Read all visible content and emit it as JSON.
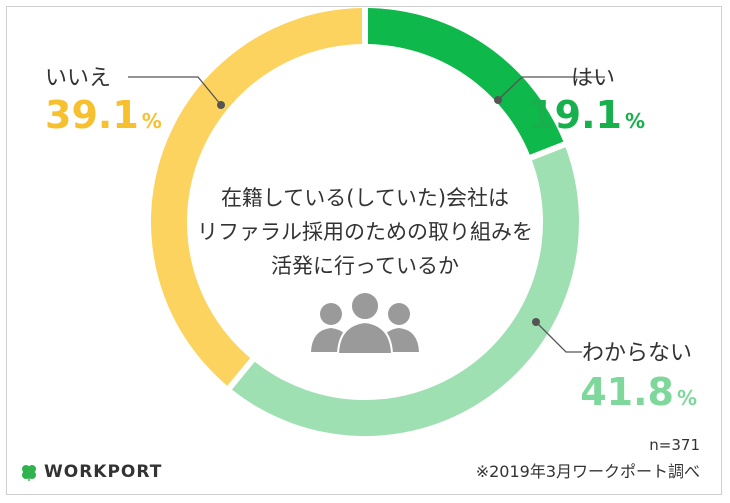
{
  "chart_data": {
    "type": "pie",
    "donut": true,
    "start": "top, clockwise",
    "slices": [
      {
        "label": "はい",
        "value": 19.1,
        "display": "19.1",
        "color": "#0fb84a",
        "label_side": "right-top"
      },
      {
        "label": "わからない",
        "value": 41.8,
        "display": "41.8",
        "color": "#9fe0b3",
        "label_side": "right-bottom"
      },
      {
        "label": "いいえ",
        "value": 39.1,
        "display": "39.1",
        "color": "#fcd35e",
        "label_side": "left-top"
      }
    ],
    "percent_sign": "%",
    "center_lines": [
      "在籍している(していた)会社は",
      "リファラル採用のための取り組みを",
      "活発に行っているか"
    ],
    "center_icon": "people-group-icon"
  },
  "footer": {
    "sample": "n=371",
    "source": "※2019年3月ワークポート調べ"
  },
  "logo": {
    "icon": "clover-icon",
    "text": "WORKPORT",
    "color": "#2eb34d"
  }
}
